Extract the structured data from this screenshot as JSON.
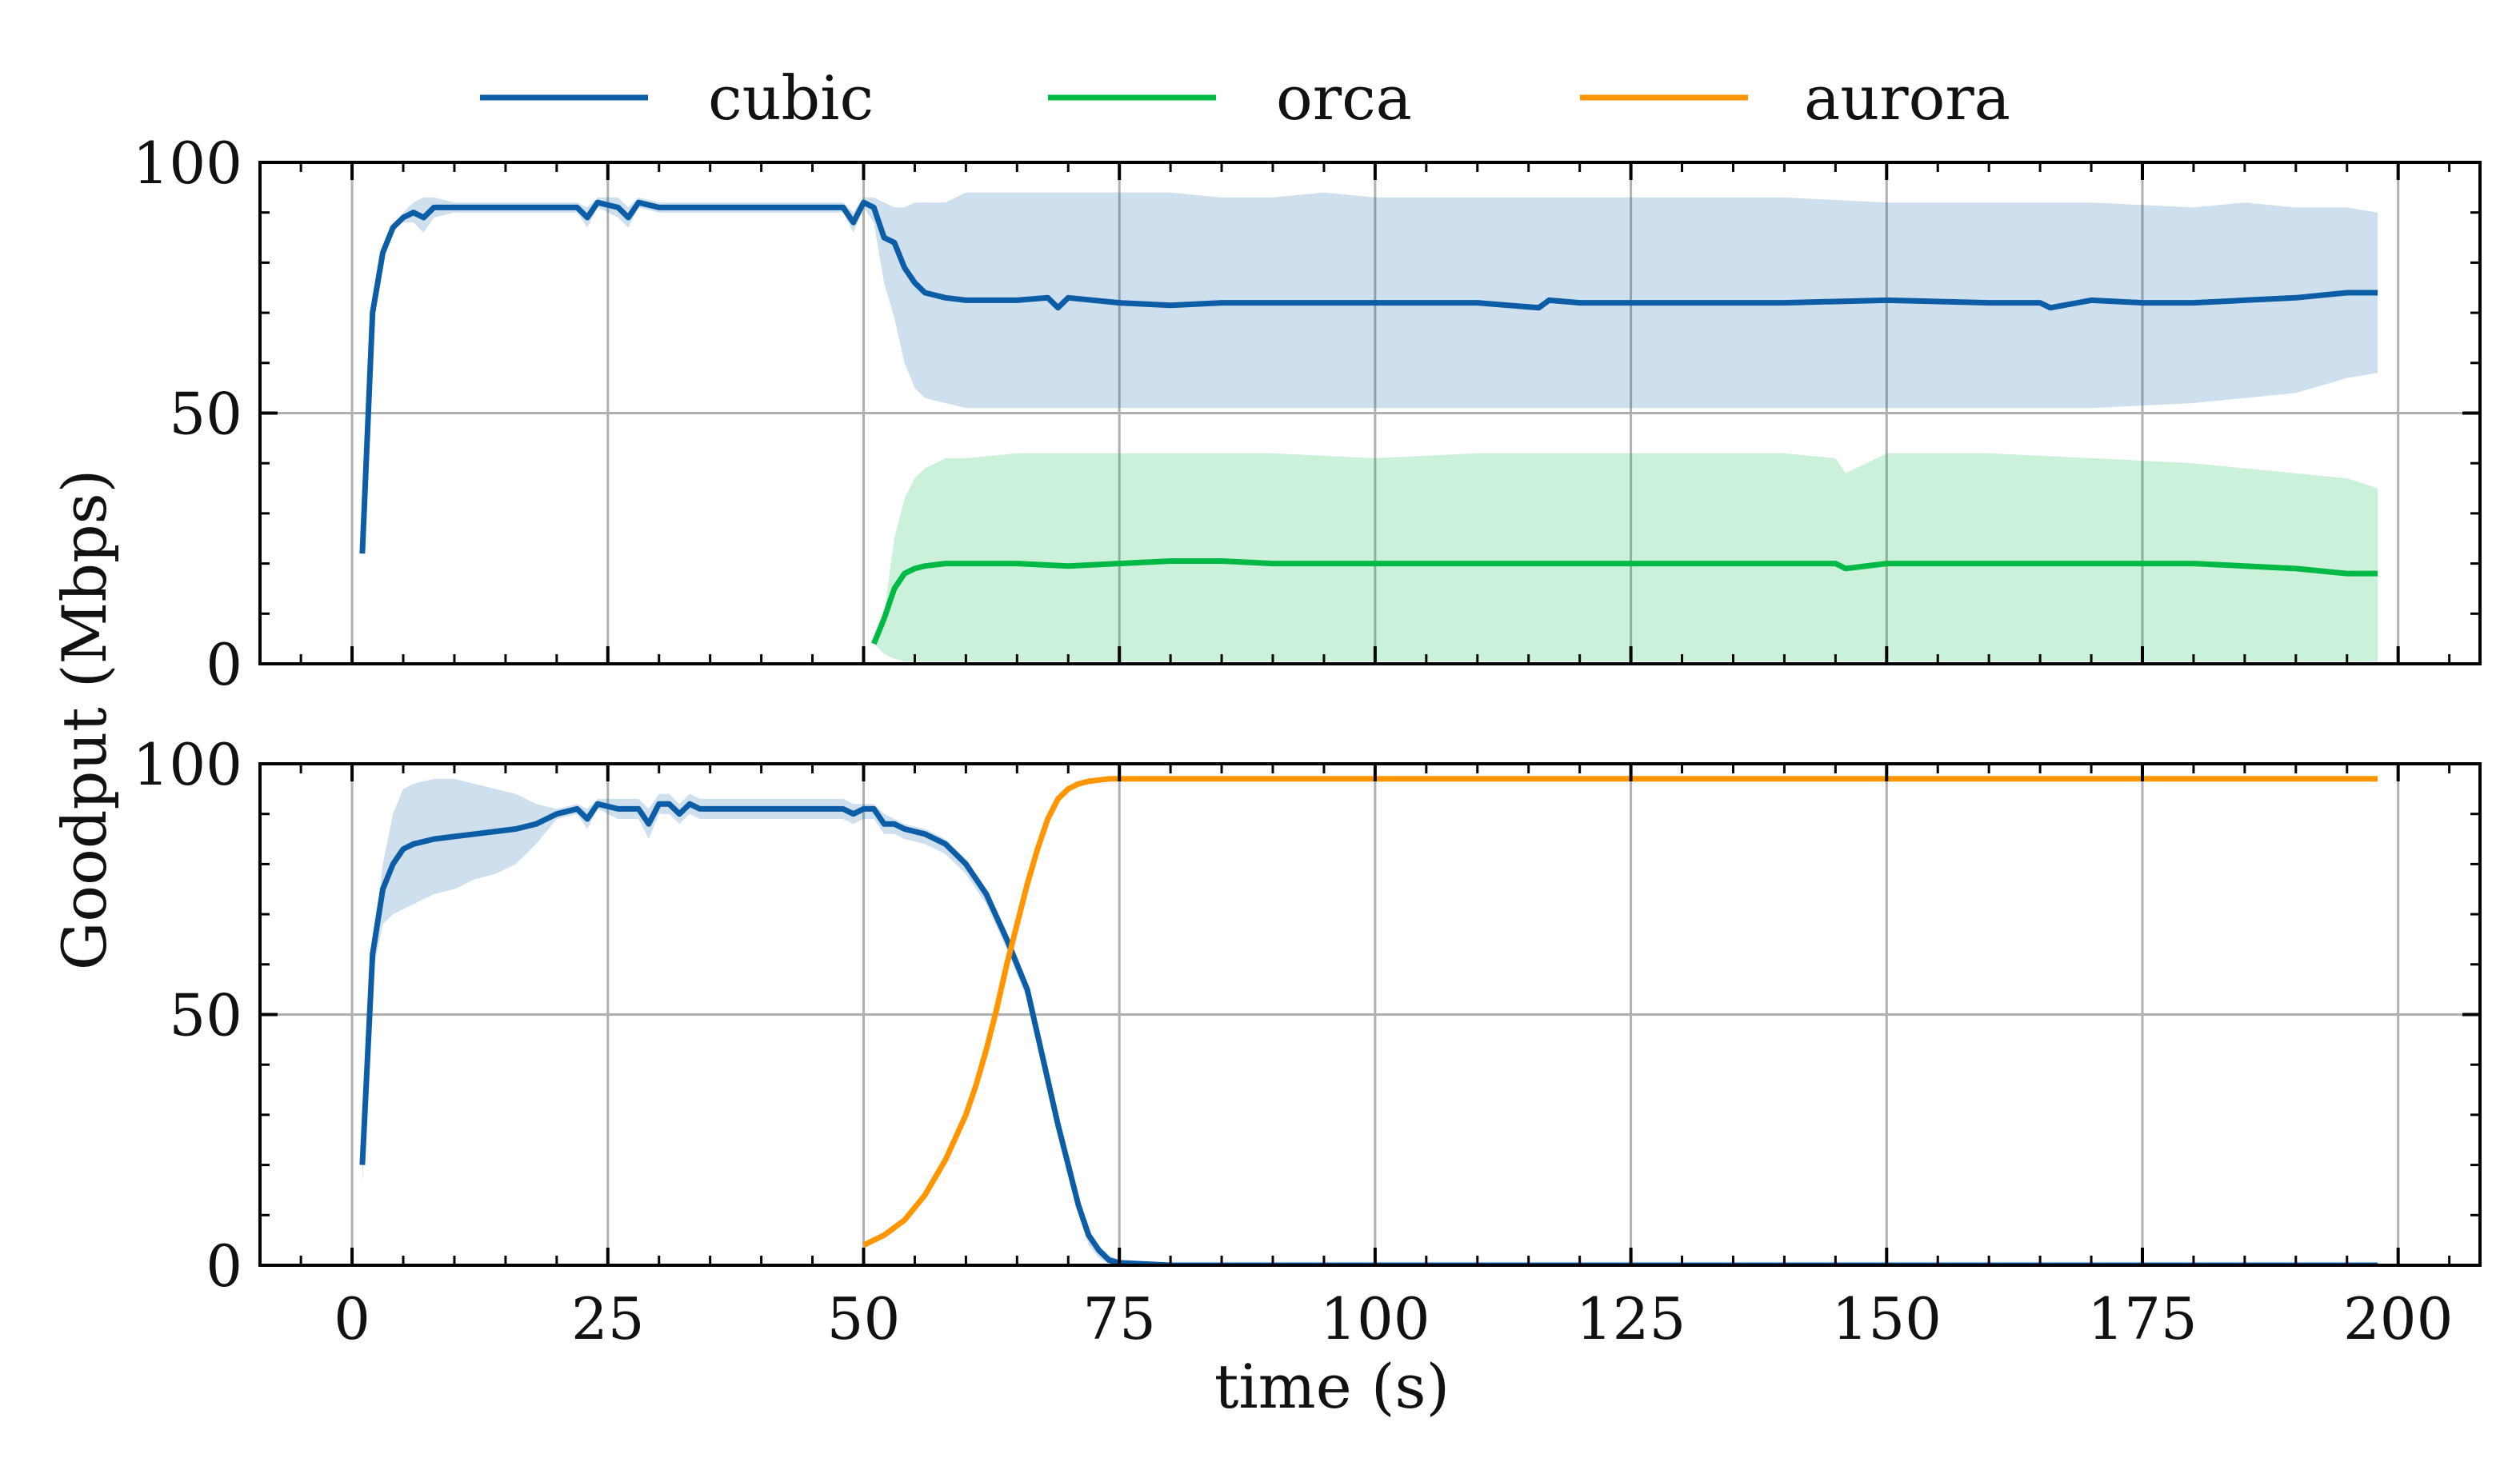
{
  "chart_data": {
    "type": "line",
    "legend": {
      "placement": "top-center",
      "entries": [
        {
          "name": "cubic",
          "color": "#0C5DA5"
        },
        {
          "name": "orca",
          "color": "#00B945"
        },
        {
          "name": "aurora",
          "color": "#FF9500"
        }
      ]
    },
    "xlabel": "time (s)",
    "ylabel": "Goodput (Mbps)",
    "xlim": [
      -9,
      208
    ],
    "xticks": [
      0,
      25,
      50,
      75,
      100,
      125,
      150,
      175,
      200
    ],
    "x_tick_labels": [
      "0",
      "25",
      "50",
      "75",
      "100",
      "125",
      "150",
      "175",
      "200"
    ],
    "grid": true,
    "panels": [
      {
        "id": "top",
        "ylim": [
          0,
          100
        ],
        "yticks": [
          0,
          50,
          100
        ],
        "y_tick_labels": [
          "0",
          "50",
          "100"
        ],
        "series": [
          {
            "name": "cubic",
            "color": "#0C5DA5",
            "x": [
              1,
              2,
              3,
              4,
              5,
              6,
              7,
              8,
              10,
              12,
              15,
              20,
              22,
              23,
              24,
              26,
              27,
              28,
              30,
              35,
              40,
              45,
              48,
              49,
              50,
              51,
              52,
              53,
              54,
              55,
              56,
              58,
              60,
              65,
              68,
              69,
              70,
              75,
              80,
              85,
              90,
              95,
              100,
              110,
              116,
              117,
              120,
              130,
              140,
              150,
              160,
              165,
              166,
              170,
              175,
              180,
              185,
              190,
              195,
              198
            ],
            "y": [
              22,
              70,
              82,
              87,
              89,
              90,
              89,
              91,
              91,
              91,
              91,
              91,
              91,
              89,
              92,
              91,
              89,
              92,
              91,
              91,
              91,
              91,
              91,
              88,
              92,
              91,
              85,
              84,
              79,
              76,
              74,
              73,
              72.5,
              72.5,
              73,
              71,
              73,
              72,
              71.5,
              72,
              72,
              72,
              72,
              72,
              71,
              72.5,
              72,
              72,
              72,
              72.5,
              72,
              72,
              71,
              72.5,
              72,
              72,
              72.5,
              73,
              74,
              74
            ]
          },
          {
            "name": "orca",
            "color": "#00B945",
            "x": [
              51,
              52,
              53,
              54,
              55,
              56,
              58,
              60,
              65,
              70,
              75,
              80,
              85,
              90,
              95,
              100,
              110,
              120,
              130,
              140,
              145,
              146,
              150,
              160,
              170,
              180,
              185,
              190,
              195,
              198
            ],
            "y": [
              4,
              9,
              15,
              18,
              19,
              19.5,
              20,
              20,
              20,
              19.5,
              20,
              20.5,
              20.5,
              20,
              20,
              20,
              20,
              20,
              20,
              20,
              20,
              19,
              20,
              20,
              20,
              20,
              19.5,
              19,
              18,
              18
            ]
          }
        ],
        "bands": [
          {
            "series": "cubic",
            "color": "#0C5DA5",
            "x": [
              1,
              2,
              3,
              4,
              5,
              6,
              7,
              8,
              10,
              12,
              15,
              20,
              22,
              23,
              24,
              26,
              27,
              28,
              30,
              35,
              40,
              45,
              48,
              49,
              50,
              51,
              52,
              53,
              54,
              55,
              56,
              58,
              60,
              65,
              70,
              75,
              80,
              85,
              90,
              95,
              100,
              110,
              120,
              130,
              140,
              150,
              160,
              170,
              180,
              185,
              190,
              195,
              198
            ],
            "upper": [
              22,
              70,
              82,
              87,
              90,
              92,
              93,
              93,
              92,
              92,
              92,
              92,
              92,
              91,
              93,
              93,
              91,
              93,
              92,
              92,
              92,
              92,
              92,
              90,
              93,
              93,
              92,
              91,
              91,
              92,
              92,
              92,
              94,
              94,
              94,
              94,
              94,
              93,
              93,
              94,
              93,
              93,
              93,
              93,
              93,
              92,
              92,
              92,
              91,
              92,
              91,
              91,
              90
            ],
            "lower": [
              22,
              70,
              82,
              87,
              88,
              88,
              86,
              89,
              90,
              90,
              90,
              90,
              90,
              87,
              91,
              89,
              87,
              91,
              90,
              90,
              90,
              90,
              90,
              86,
              91,
              88,
              76,
              69,
              60,
              55,
              53,
              52,
              51,
              51,
              51,
              51,
              51,
              51,
              51,
              51,
              51,
              51,
              51,
              51,
              51,
              51,
              51,
              51,
              52,
              53,
              54,
              57,
              58
            ]
          },
          {
            "series": "orca",
            "color": "#00B945",
            "x": [
              51,
              52,
              53,
              54,
              55,
              56,
              57,
              58,
              60,
              65,
              70,
              75,
              80,
              90,
              100,
              110,
              120,
              130,
              140,
              145,
              146,
              150,
              160,
              170,
              180,
              185,
              190,
              195,
              198
            ],
            "upper": [
              4,
              10,
              25,
              33,
              37,
              39,
              40,
              41,
              41,
              42,
              42,
              42,
              42,
              42,
              41,
              42,
              42,
              42,
              42,
              41,
              38,
              42,
              42,
              41,
              40,
              39,
              38,
              37,
              35
            ],
            "lower": [
              4,
              2,
              1,
              0.5,
              0.5,
              0.5,
              0.5,
              0.5,
              0.5,
              0.5,
              0.5,
              0.5,
              0.5,
              0.5,
              0.5,
              0.5,
              0.5,
              0.5,
              0.5,
              0.5,
              0.5,
              0.5,
              0.5,
              0.5,
              0.5,
              0.5,
              0.5,
              0.5,
              0.5
            ]
          }
        ]
      },
      {
        "id": "bottom",
        "ylim": [
          0,
          100
        ],
        "yticks": [
          0,
          50,
          100
        ],
        "y_tick_labels": [
          "0",
          "50",
          "100"
        ],
        "series": [
          {
            "name": "cubic",
            "color": "#0C5DA5",
            "x": [
              1,
              2,
              3,
              4,
              5,
              6,
              8,
              10,
              12,
              14,
              16,
              18,
              20,
              22,
              23,
              24,
              26,
              28,
              29,
              30,
              31,
              32,
              33,
              34,
              35,
              40,
              45,
              48,
              49,
              50,
              51,
              52,
              53,
              54,
              56,
              58,
              60,
              62,
              64,
              66,
              67,
              68,
              69,
              70,
              71,
              72,
              73,
              74,
              75,
              80,
              90,
              100,
              120,
              140,
              160,
              180,
              198
            ],
            "y": [
              20,
              62,
              75,
              80,
              83,
              84,
              85,
              85.5,
              86,
              86.5,
              87,
              88,
              90,
              91,
              89,
              92,
              91,
              91,
              88,
              92,
              92,
              90,
              92,
              91,
              91,
              91,
              91,
              91,
              90,
              91,
              91,
              88,
              88,
              87,
              86,
              84,
              80,
              74,
              65,
              55,
              46,
              37,
              28,
              20,
              12,
              6,
              3,
              1,
              0.5,
              0,
              0,
              0,
              0,
              0,
              0,
              0,
              0
            ]
          },
          {
            "name": "aurora",
            "color": "#FF9500",
            "x": [
              50,
              52,
              54,
              56,
              58,
              60,
              61,
              62,
              63,
              64,
              65,
              66,
              67,
              68,
              69,
              70,
              71,
              72,
              74,
              76,
              80,
              90,
              100,
              120,
              140,
              160,
              180,
              198
            ],
            "y": [
              4,
              6,
              9,
              14,
              21,
              30,
              36,
              43,
              51,
              60,
              68,
              76,
              83,
              89,
              93,
              95,
              96,
              96.5,
              97,
              97,
              97,
              97,
              97,
              97,
              97,
              97,
              97,
              97
            ]
          }
        ],
        "bands": [
          {
            "series": "cubic",
            "color": "#0C5DA5",
            "x": [
              1,
              2,
              3,
              4,
              5,
              6,
              8,
              10,
              12,
              14,
              16,
              18,
              20,
              22,
              23,
              24,
              26,
              28,
              29,
              30,
              31,
              32,
              33,
              34,
              35,
              40,
              45,
              48,
              49,
              50,
              51,
              52,
              53,
              54,
              56,
              58,
              60,
              62,
              64,
              66,
              67,
              68,
              69,
              70,
              71,
              72,
              73,
              74,
              75,
              80
            ],
            "upper": [
              20,
              62,
              80,
              90,
              95,
              96,
              97,
              97,
              96,
              95,
              94,
              92,
              91,
              92,
              91,
              93,
              93,
              93,
              91,
              94,
              94,
              92,
              94,
              93,
              93,
              93,
              93,
              93,
              92,
              92,
              92,
              90,
              89,
              88,
              87,
              85,
              81,
              75,
              66,
              56,
              47,
              38,
              29,
              21,
              13,
              7,
              4,
              2,
              1,
              0.3
            ],
            "lower": [
              16,
              58,
              68,
              70,
              71,
              72,
              74,
              75,
              77,
              78,
              80,
              84,
              89,
              90,
              87,
              91,
              89,
              89,
              85,
              90,
              90,
              88,
              90,
              89,
              89,
              89,
              89,
              89,
              88,
              89,
              89,
              86,
              86,
              85,
              84,
              82,
              78,
              72,
              63,
              53,
              44,
              35,
              26,
              18,
              10,
              4,
              1.5,
              0.3,
              0,
              0
            ]
          }
        ]
      }
    ]
  }
}
